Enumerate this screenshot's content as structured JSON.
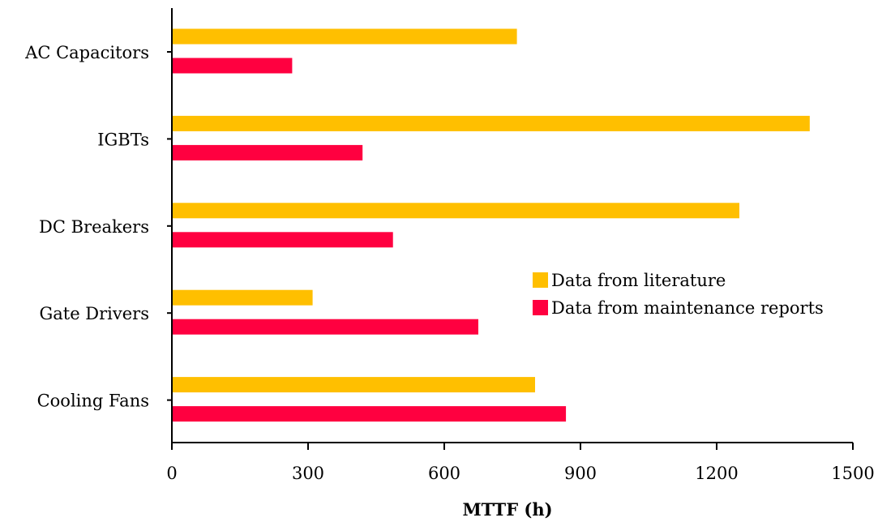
{
  "chart_data": {
    "type": "bar",
    "orientation": "horizontal",
    "title": "",
    "xlabel": "MTTF (h)",
    "ylabel": "",
    "categories": [
      "AC Capacitors",
      "IGBTs",
      "DC Breakers",
      "Gate Drivers",
      "Cooling Fans"
    ],
    "series": [
      {
        "name": "Data from literature",
        "color": "#FFBF00",
        "values": [
          760,
          1405,
          1250,
          310,
          800
        ]
      },
      {
        "name": "Data from maintenance reports",
        "color": "#FF0040",
        "values": [
          265,
          420,
          487,
          675,
          868
        ]
      }
    ],
    "xlim": [
      0,
      1500
    ],
    "xticks": [
      "0",
      "300",
      "600",
      "900",
      "1200",
      "1500"
    ],
    "grid": false,
    "legend_position": "center-right"
  }
}
